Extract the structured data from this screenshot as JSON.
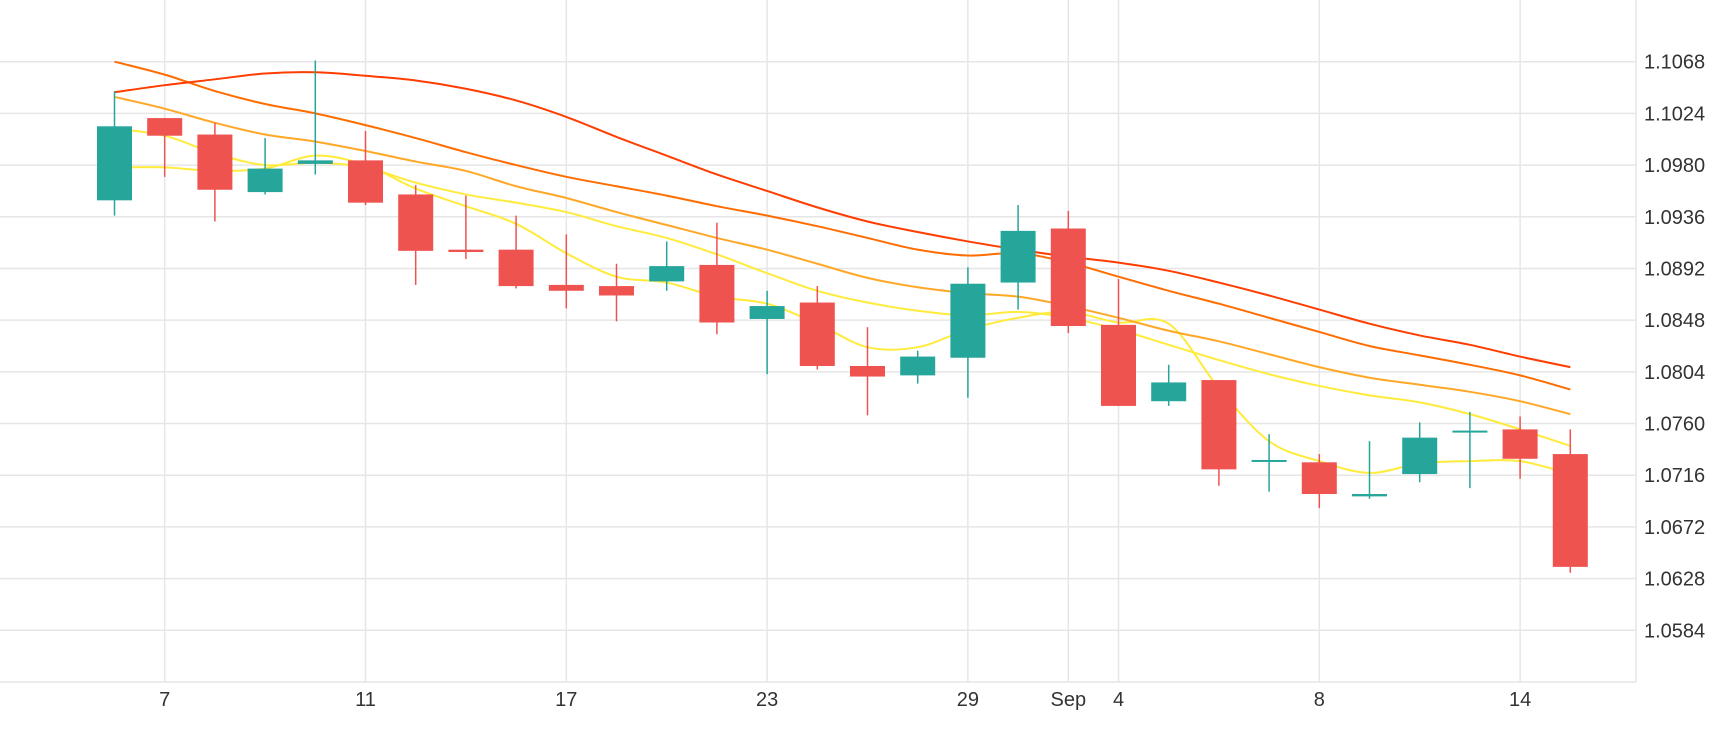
{
  "chart_data": {
    "type": "candlestick",
    "title": "",
    "xlabel": "",
    "ylabel": "",
    "ylim": [
      1.054,
      1.1112
    ],
    "grid": true,
    "legend": "none",
    "colors": {
      "up": "#26a69a",
      "down": "#ef5350",
      "ma_yellow": "#ffeb3b",
      "ma_light_orange": "#ffa726",
      "ma_orange": "#ff6d00",
      "ma_red": "#ff3d00",
      "grid": "#e6e6e6",
      "text": "#333333"
    },
    "x_ticks": [
      {
        "label": "7",
        "index": 1
      },
      {
        "label": "11",
        "index": 5
      },
      {
        "label": "17",
        "index": 9
      },
      {
        "label": "23",
        "index": 13
      },
      {
        "label": "29",
        "index": 17
      },
      {
        "label": "Sep",
        "index": 19
      },
      {
        "label": "4",
        "index": 20
      },
      {
        "label": "8",
        "index": 24
      },
      {
        "label": "14",
        "index": 28
      }
    ],
    "y_ticks": [
      "1.1068",
      "1.1024",
      "1.0980",
      "1.0936",
      "1.0892",
      "1.0848",
      "1.0804",
      "1.0760",
      "1.0716",
      "1.0672",
      "1.0628",
      "1.0584"
    ],
    "candles": [
      {
        "o": 1.095,
        "h": 1.1043,
        "l": 1.0937,
        "c": 1.1013
      },
      {
        "o": 1.102,
        "h": 1.102,
        "l": 1.097,
        "c": 1.1005
      },
      {
        "o": 1.1006,
        "h": 1.1016,
        "l": 1.0932,
        "c": 1.0959
      },
      {
        "o": 1.0957,
        "h": 1.1003,
        "l": 1.0955,
        "c": 1.0977
      },
      {
        "o": 1.0981,
        "h": 1.1069,
        "l": 1.0972,
        "c": 1.0984
      },
      {
        "o": 1.0984,
        "h": 1.1009,
        "l": 1.0946,
        "c": 1.0948
      },
      {
        "o": 1.0955,
        "h": 1.0963,
        "l": 1.0878,
        "c": 1.0907
      },
      {
        "o": 1.0908,
        "h": 1.0954,
        "l": 1.09,
        "c": 1.0906
      },
      {
        "o": 1.0908,
        "h": 1.0937,
        "l": 1.0875,
        "c": 1.0877
      },
      {
        "o": 1.0878,
        "h": 1.0921,
        "l": 1.0858,
        "c": 1.0873
      },
      {
        "o": 1.0877,
        "h": 1.0896,
        "l": 1.0847,
        "c": 1.0869
      },
      {
        "o": 1.0881,
        "h": 1.0915,
        "l": 1.0873,
        "c": 1.0894
      },
      {
        "o": 1.0895,
        "h": 1.0931,
        "l": 1.0836,
        "c": 1.0846
      },
      {
        "o": 1.0849,
        "h": 1.0873,
        "l": 1.0802,
        "c": 1.086
      },
      {
        "o": 1.0863,
        "h": 1.0877,
        "l": 1.0806,
        "c": 1.0809
      },
      {
        "o": 1.0809,
        "h": 1.0842,
        "l": 1.0767,
        "c": 1.08
      },
      {
        "o": 1.0801,
        "h": 1.0822,
        "l": 1.0794,
        "c": 1.0817
      },
      {
        "o": 1.0816,
        "h": 1.0893,
        "l": 1.0782,
        "c": 1.0879
      },
      {
        "o": 1.088,
        "h": 1.0946,
        "l": 1.0857,
        "c": 1.0924
      },
      {
        "o": 1.0926,
        "h": 1.0941,
        "l": 1.0837,
        "c": 1.0843
      },
      {
        "o": 1.0844,
        "h": 1.0883,
        "l": 1.0775,
        "c": 1.0775
      },
      {
        "o": 1.0779,
        "h": 1.081,
        "l": 1.0775,
        "c": 1.0795
      },
      {
        "o": 1.0797,
        "h": 1.0797,
        "l": 1.0707,
        "c": 1.0721
      },
      {
        "o": 1.0729,
        "h": 1.0751,
        "l": 1.0702,
        "c": 1.0729
      },
      {
        "o": 1.0727,
        "h": 1.0734,
        "l": 1.0688,
        "c": 1.07
      },
      {
        "o": 1.0698,
        "h": 1.0745,
        "l": 1.0696,
        "c": 1.07
      },
      {
        "o": 1.0717,
        "h": 1.0761,
        "l": 1.071,
        "c": 1.0748
      },
      {
        "o": 1.0754,
        "h": 1.077,
        "l": 1.0705,
        "c": 1.0754
      },
      {
        "o": 1.0755,
        "h": 1.0766,
        "l": 1.0713,
        "c": 1.073
      },
      {
        "o": 1.0734,
        "h": 1.0755,
        "l": 1.0633,
        "c": 1.0638
      }
    ],
    "series": [
      {
        "color": "#ffeb3b",
        "start_index": 0,
        "values": [
          1.0978,
          1.0978,
          1.0975,
          1.0977,
          1.0988,
          1.098,
          1.096,
          1.0945,
          1.093,
          1.0905,
          1.0885,
          1.088,
          1.0868,
          1.0862,
          1.0845,
          1.0825,
          1.0825,
          1.084,
          1.085,
          1.0855,
          1.0846,
          1.0845,
          1.079,
          1.0745,
          1.0728,
          1.0718,
          1.0726,
          1.0728,
          1.0728,
          1.0717
        ]
      },
      {
        "color": "#ffeb3b",
        "start_index": 0,
        "values": [
          1.1011,
          1.1005,
          1.099,
          1.098,
          1.0982,
          1.0978,
          1.0965,
          1.0955,
          1.0948,
          1.094,
          1.0928,
          1.0918,
          1.0904,
          1.0888,
          1.0873,
          1.0863,
          1.0856,
          1.0852,
          1.0855,
          1.085,
          1.084,
          1.0827,
          1.0814,
          1.0802,
          1.0792,
          1.0784,
          1.0778,
          1.0768,
          1.0755,
          1.0741
        ]
      },
      {
        "color": "#ffa726",
        "start_index": 0,
        "values": [
          1.1038,
          1.1028,
          1.1016,
          1.1006,
          1.1,
          1.0992,
          1.0983,
          1.0975,
          1.0962,
          1.0952,
          1.094,
          1.0929,
          1.0918,
          1.0908,
          1.0896,
          1.0884,
          1.0876,
          1.0871,
          1.0868,
          1.086,
          1.085,
          1.0839,
          1.083,
          1.0819,
          1.0808,
          1.0799,
          1.0793,
          1.0787,
          1.0779,
          1.0768
        ]
      },
      {
        "color": "#ff6d00",
        "start_index": 0,
        "values": [
          1.1068,
          1.1057,
          1.1043,
          1.1032,
          1.1024,
          1.1014,
          1.1003,
          1.0991,
          1.098,
          1.097,
          1.0962,
          1.0954,
          1.0945,
          1.0937,
          1.0928,
          1.0918,
          1.0908,
          1.0903,
          1.0905,
          1.0897,
          1.0885,
          1.0873,
          1.0862,
          1.085,
          1.0838,
          1.0826,
          1.0818,
          1.081,
          1.0801,
          1.0789
        ]
      },
      {
        "color": "#ff3d00",
        "start_index": 0,
        "values": [
          1.1042,
          1.1048,
          1.1053,
          1.1058,
          1.1059,
          1.1056,
          1.1052,
          1.1045,
          1.1035,
          1.1021,
          1.1004,
          1.0988,
          1.0972,
          1.0958,
          1.0944,
          1.0932,
          1.0923,
          1.0915,
          1.0908,
          1.0902,
          1.0897,
          1.089,
          1.088,
          1.0869,
          1.0857,
          1.0845,
          1.0835,
          1.0827,
          1.0817,
          1.0808
        ]
      }
    ]
  }
}
